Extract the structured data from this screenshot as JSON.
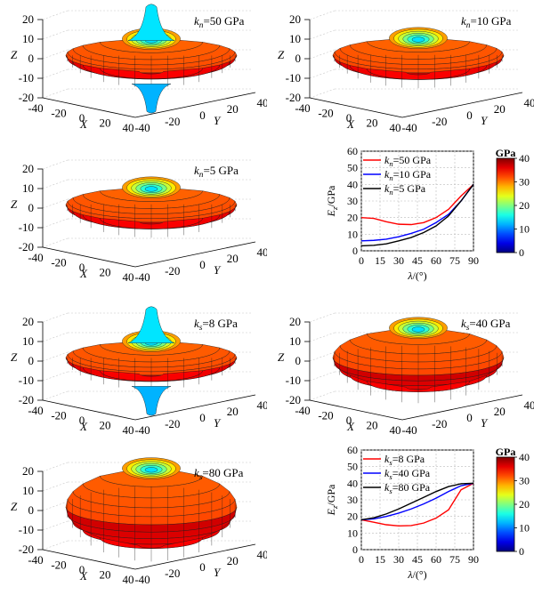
{
  "colors": {
    "n50": "#ff0000",
    "n10": "#0000ff",
    "n5": "#000000",
    "s8": "#ff0000",
    "s40": "#0000ff",
    "s80": "#000000",
    "surface_edge": "#1a1a1a",
    "grid": "#c8c8c8"
  },
  "surfaces": [
    {
      "label_main": "k",
      "label_sub": "n",
      "label_rest": "=50 GPa",
      "x_label": "X",
      "y_label": "Y",
      "z_label": "Z",
      "z_ticks": [
        "20",
        "10",
        "0",
        "-10",
        "-20"
      ],
      "x_ticks": [
        "-40",
        "-20",
        "0",
        "20",
        "40"
      ],
      "y_ticks": [
        "-40",
        "-20",
        "0",
        "20",
        "40"
      ],
      "shape": "flat-peaked",
      "peak": 1.0,
      "equator_ratio": 0.28
    },
    {
      "label_main": "k",
      "label_sub": "n",
      "label_rest": "=10 GPa",
      "x_label": "X",
      "y_label": "Y",
      "z_label": "Z",
      "z_ticks": [
        "20",
        "10",
        "0",
        "-10",
        "-20"
      ],
      "x_ticks": [
        "-40",
        "-20",
        "0",
        "20",
        "40"
      ],
      "y_ticks": [
        "-40",
        "-20",
        "0",
        "20",
        "40"
      ],
      "shape": "flat",
      "peak": 0.0,
      "equator_ratio": 0.3
    },
    {
      "label_main": "k",
      "label_sub": "n",
      "label_rest": "=5 GPa",
      "x_label": "X",
      "y_label": "Y",
      "z_label": "Z",
      "z_ticks": [
        "20",
        "10",
        "0",
        "-10",
        "-20"
      ],
      "x_ticks": [
        "-40",
        "-20",
        "0",
        "20",
        "40"
      ],
      "y_ticks": [
        "-40",
        "-20",
        "0",
        "20",
        "40"
      ],
      "shape": "flat",
      "peak": 0.0,
      "equator_ratio": 0.3
    },
    {
      "label_main": "k",
      "label_sub": "s",
      "label_rest": "=8 GPa",
      "x_label": "X",
      "y_label": "Y",
      "z_label": "Z",
      "z_ticks": [
        "20",
        "10",
        "0",
        "-10",
        "-20"
      ],
      "x_ticks": [
        "-40",
        "-20",
        "0",
        "20",
        "40"
      ],
      "y_ticks": [
        "-40",
        "-20",
        "0",
        "20",
        "40"
      ],
      "shape": "flat-peaked",
      "peak": 1.0,
      "equator_ratio": 0.28
    },
    {
      "label_main": "k",
      "label_sub": "s",
      "label_rest": "=40 GPa",
      "x_label": "X",
      "y_label": "Y",
      "z_label": "Z",
      "z_ticks": [
        "20",
        "10",
        "0",
        "-10",
        "-20"
      ],
      "x_ticks": [
        "-40",
        "-20",
        "0",
        "20",
        "40"
      ],
      "y_ticks": [
        "-40",
        "-20",
        "0",
        "20",
        "40"
      ],
      "shape": "ellipsoid",
      "peak": 0.0,
      "equator_ratio": 0.62
    },
    {
      "label_main": "k",
      "label_sub": "s",
      "label_rest": "=80 GPa",
      "x_label": "X",
      "y_label": "Y",
      "z_label": "Z",
      "z_ticks": [
        "20",
        "10",
        "0",
        "-10",
        "-20"
      ],
      "x_ticks": [
        "-40",
        "-20",
        "0",
        "20",
        "40"
      ],
      "y_ticks": [
        "-40",
        "-20",
        "0",
        "20",
        "40"
      ],
      "shape": "ellipsoid",
      "peak": 0.0,
      "equator_ratio": 0.85
    }
  ],
  "chart_data": [
    {
      "type": "line",
      "xlabel_main": "λ",
      "xlabel_rest": "/(°)",
      "ylabel_main": "E",
      "ylabel_sub": "z",
      "ylabel_rest": "/GPa",
      "xlim": [
        0,
        90
      ],
      "ylim": [
        0,
        60
      ],
      "x_ticks": [
        "0",
        "15",
        "30",
        "45",
        "60",
        "75",
        "90"
      ],
      "y_ticks": [
        "0",
        "10",
        "20",
        "30",
        "40",
        "50",
        "60"
      ],
      "grid": true,
      "legend_position": "top-left",
      "x": [
        0,
        10,
        20,
        30,
        40,
        50,
        60,
        70,
        80,
        90
      ],
      "series": [
        {
          "label_main": "k",
          "label_sub": "n",
          "label_rest": "=50 GPa",
          "color_key": "n50",
          "values": [
            20,
            19.5,
            17.5,
            16,
            15.8,
            17,
            20,
            25,
            33,
            40
          ]
        },
        {
          "label_main": "k",
          "label_sub": "n",
          "label_rest": "=10 GPa",
          "color_key": "n10",
          "values": [
            6,
            6.3,
            7,
            8.5,
            10.5,
            13,
            17,
            22,
            30,
            40
          ]
        },
        {
          "label_main": "k",
          "label_sub": "n",
          "label_rest": "=5 GPa",
          "color_key": "n5",
          "values": [
            3,
            3.3,
            4.2,
            6,
            8,
            11,
            15,
            21,
            30,
            40
          ]
        }
      ],
      "colorbar": {
        "unit": "GPa",
        "ticks": [
          "40",
          "30",
          "20",
          "10",
          "0"
        ],
        "min": 0,
        "max": 40
      }
    },
    {
      "type": "line",
      "xlabel_main": "λ",
      "xlabel_rest": "/(°)",
      "ylabel_main": "E",
      "ylabel_sub": "z",
      "ylabel_rest": "/GPa",
      "xlim": [
        0,
        90
      ],
      "ylim": [
        0,
        60
      ],
      "x_ticks": [
        "0",
        "15",
        "30",
        "45",
        "60",
        "75",
        "90"
      ],
      "y_ticks": [
        "0",
        "10",
        "20",
        "30",
        "40",
        "50",
        "60"
      ],
      "grid": true,
      "legend_position": "top-left",
      "x": [
        0,
        10,
        20,
        30,
        40,
        50,
        60,
        70,
        80,
        90
      ],
      "series": [
        {
          "label_main": "k",
          "label_sub": "s",
          "label_rest": "=8 GPa",
          "color_key": "s8",
          "values": [
            18,
            16.5,
            15,
            14.3,
            14.5,
            16,
            19,
            24,
            36,
            40
          ]
        },
        {
          "label_main": "k",
          "label_sub": "s",
          "label_rest": "=40 GPa",
          "color_key": "s40",
          "values": [
            18,
            18.5,
            20,
            22,
            24.5,
            27.5,
            31,
            35,
            38.5,
            40
          ]
        },
        {
          "label_main": "k",
          "label_sub": "s",
          "label_rest": "=80 GPa",
          "color_key": "s80",
          "values": [
            18,
            19.2,
            21.5,
            24.5,
            28,
            31.5,
            35,
            38,
            39.7,
            40
          ]
        }
      ],
      "colorbar": {
        "unit": "GPa",
        "ticks": [
          "40",
          "30",
          "20",
          "10",
          "0"
        ],
        "min": 0,
        "max": 40
      }
    }
  ]
}
